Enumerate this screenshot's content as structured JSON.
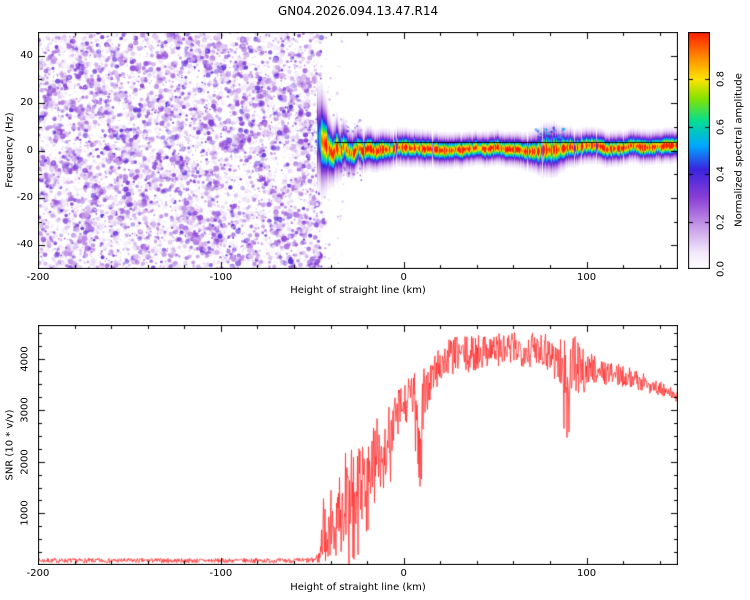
{
  "title": "GN04.2026.094.13.47.R14",
  "chart_data": [
    {
      "type": "heatmap",
      "name": "radio-occultation-spectrogram",
      "xlabel": "Height of straight line (km)",
      "ylabel": "Frequency (Hz)",
      "xlim": [
        -200,
        150
      ],
      "ylim": [
        -50,
        50
      ],
      "xticks": [
        -200,
        -100,
        0,
        100
      ],
      "xtick_labels": [
        "-200",
        "-100",
        "0",
        "100"
      ],
      "yticks": [
        -40,
        -20,
        0,
        20,
        40
      ],
      "ytick_labels": [
        "-40",
        "-20",
        "0",
        "20",
        "40"
      ],
      "colorbar": {
        "label": "Normalized spectral amplitude",
        "lim": [
          0,
          1
        ],
        "ticks": [
          0,
          0.2,
          0.4,
          0.6,
          0.8
        ],
        "tick_labels": [
          "0.0",
          "0.2",
          "0.4",
          "0.6",
          "0.8"
        ]
      },
      "colormap": [
        [
          0,
          "#ffffff"
        ],
        [
          0.07,
          "#f2e9fb"
        ],
        [
          0.18,
          "#c79ae8"
        ],
        [
          0.3,
          "#8b3fd6"
        ],
        [
          0.42,
          "#3a24dd"
        ],
        [
          0.52,
          "#00a8ff"
        ],
        [
          0.62,
          "#00dd99"
        ],
        [
          0.72,
          "#86e300"
        ],
        [
          0.8,
          "#ffe400"
        ],
        [
          0.9,
          "#ff8400"
        ],
        [
          1,
          "#ff1a00"
        ]
      ],
      "noise_region": {
        "x_range": [
          -200,
          -45
        ],
        "t_range": [
          0.04,
          0.38
        ],
        "density": 6500,
        "clusters": 260
      },
      "signal_band": [
        [
          -47,
          6,
          9,
          0.55
        ],
        [
          -45,
          4,
          8.5,
          0.85
        ],
        [
          -43,
          2,
          7,
          1
        ],
        [
          -41,
          0,
          5.5,
          1
        ],
        [
          -39,
          -1.5,
          4.5,
          0.95
        ],
        [
          -37,
          2,
          5,
          1
        ],
        [
          -35,
          -1,
          4.2,
          1
        ],
        [
          -33,
          2.5,
          4.2,
          1
        ],
        [
          -31,
          0.5,
          3.8,
          1
        ],
        [
          -28,
          -1.5,
          3.6,
          0.95
        ],
        [
          -25,
          2,
          3.4,
          1
        ],
        [
          -22,
          0,
          3.2,
          1
        ],
        [
          -19,
          1.2,
          3.2,
          1
        ],
        [
          -15,
          0.2,
          3,
          1
        ],
        [
          -11,
          1,
          3,
          1
        ],
        [
          -7,
          0.4,
          2.9,
          1
        ],
        [
          -3,
          1,
          2.8,
          1
        ],
        [
          1,
          0.6,
          2.8,
          1
        ],
        [
          5,
          1,
          2.7,
          1
        ],
        [
          10,
          0.8,
          2.7,
          1
        ],
        [
          16,
          1,
          2.6,
          1
        ],
        [
          24,
          0.9,
          2.6,
          1
        ],
        [
          32,
          1,
          2.5,
          1
        ],
        [
          40,
          1,
          2.5,
          1
        ],
        [
          48,
          1,
          2.5,
          1
        ],
        [
          56,
          1,
          2.5,
          1
        ],
        [
          64,
          1,
          2.6,
          1
        ],
        [
          70,
          1.2,
          2.9,
          1
        ],
        [
          76,
          1.6,
          3.8,
          1
        ],
        [
          82,
          1.1,
          4,
          1
        ],
        [
          88,
          1,
          3,
          1
        ],
        [
          95,
          1,
          2.7,
          1
        ],
        [
          105,
          1,
          2.6,
          1
        ],
        [
          120,
          1,
          2.5,
          1
        ],
        [
          135,
          1,
          2.5,
          1
        ],
        [
          150,
          1,
          2.5,
          1
        ]
      ],
      "onset_blob": {
        "x": -43,
        "freq": 2,
        "sx": 2.5,
        "sy": 7
      },
      "trace_line": {
        "freq": 3.4,
        "x_range": [
          -38,
          150
        ],
        "color": "#000000"
      }
    },
    {
      "type": "line",
      "name": "snr-profile",
      "xlabel": "Height of straight line (km)",
      "ylabel": "SNR (10 * v/v)",
      "xlim": [
        -200,
        150
      ],
      "ylim": [
        0,
        4650
      ],
      "xticks": [
        -200,
        -100,
        0,
        100
      ],
      "xtick_labels": [
        "-200",
        "-100",
        "0",
        "100"
      ],
      "yticks": [
        1000,
        2000,
        3000,
        4000
      ],
      "ytick_labels": [
        "1000",
        "2000",
        "3000",
        "4000"
      ],
      "series": [
        {
          "name": "SNR",
          "color": "#ff2e2e",
          "control_points": [
            [
              -200,
              85,
              45
            ],
            [
              -120,
              85,
              45
            ],
            [
              -60,
              85,
              45
            ],
            [
              -50,
              90,
              55
            ],
            [
              -46,
              150,
              120
            ],
            [
              -44,
              700,
              650
            ],
            [
              -42,
              500,
              450
            ],
            [
              -40,
              900,
              850
            ],
            [
              -38,
              300,
              250
            ],
            [
              -36,
              1100,
              900
            ],
            [
              -34,
              800,
              700
            ],
            [
              -32,
              1400,
              900
            ],
            [
              -30,
              1100,
              800
            ],
            [
              -28,
              1600,
              800
            ],
            [
              -26,
              1300,
              700
            ],
            [
              -24,
              1800,
              800
            ],
            [
              -22,
              1500,
              700
            ],
            [
              -20,
              2000,
              700
            ],
            [
              -17,
              1800,
              800
            ],
            [
              -14,
              2300,
              700
            ],
            [
              -11,
              2100,
              800
            ],
            [
              -8,
              2600,
              600
            ],
            [
              -5,
              2800,
              500
            ],
            [
              -2,
              3000,
              500
            ],
            [
              1,
              3100,
              450
            ],
            [
              4,
              3300,
              400
            ],
            [
              7,
              3200,
              600
            ],
            [
              9,
              1800,
              1400
            ],
            [
              11,
              3300,
              500
            ],
            [
              14,
              3500,
              450
            ],
            [
              18,
              3800,
              400
            ],
            [
              24,
              4000,
              380
            ],
            [
              30,
              4100,
              350
            ],
            [
              36,
              4050,
              380
            ],
            [
              42,
              4150,
              350
            ],
            [
              48,
              4200,
              320
            ],
            [
              55,
              4150,
              350
            ],
            [
              62,
              4200,
              320
            ],
            [
              68,
              4150,
              350
            ],
            [
              74,
              4250,
              350
            ],
            [
              80,
              4100,
              400
            ],
            [
              85,
              3950,
              500
            ],
            [
              89,
              3700,
              700
            ],
            [
              93,
              3900,
              600
            ],
            [
              97,
              3700,
              500
            ],
            [
              102,
              3850,
              300
            ],
            [
              108,
              3750,
              250
            ],
            [
              115,
              3700,
              220
            ],
            [
              122,
              3650,
              200
            ],
            [
              130,
              3550,
              180
            ],
            [
              138,
              3450,
              150
            ],
            [
              144,
              3350,
              140
            ],
            [
              150,
              3250,
              130
            ]
          ]
        }
      ]
    }
  ]
}
